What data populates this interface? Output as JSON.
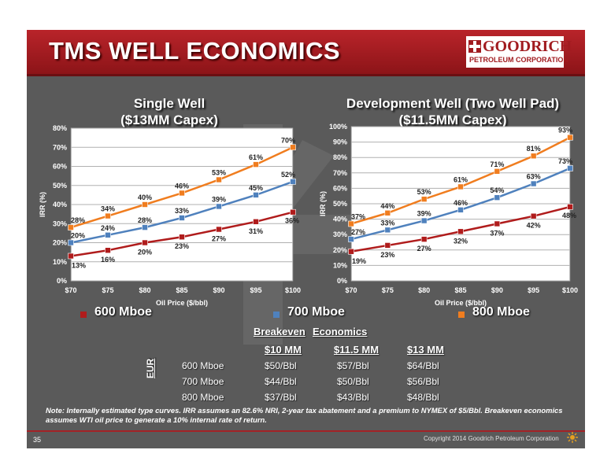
{
  "slide_title": "TMS WELL ECONOMICS",
  "logo": {
    "name": "GOODRICH",
    "subtitle": "PETROLEUM CORPORATION"
  },
  "colors": {
    "header_red": "#b9242a",
    "s600": "#b01c1c",
    "s700": "#4f81bd",
    "s800": "#f07d1f"
  },
  "chart_data": [
    {
      "type": "line",
      "title": "Single Well ($13MM Capex)",
      "title_line1": "Single Well",
      "title_line2": "($13MM Capex)",
      "xlabel": "Oil Price ($/bbl)",
      "ylabel": "IRR (%)",
      "categories": [
        "$70",
        "$75",
        "$80",
        "$85",
        "$90",
        "$95",
        "$100"
      ],
      "ylim": [
        0,
        80
      ],
      "yticks": [
        0,
        10,
        20,
        30,
        40,
        50,
        60,
        70,
        80
      ],
      "ytick_labels": [
        "0%",
        "10%",
        "20%",
        "30%",
        "40%",
        "50%",
        "60%",
        "70%",
        "80%"
      ],
      "grid": true,
      "series": [
        {
          "name": "600 Mboe",
          "color": "#b01c1c",
          "values": [
            13,
            16,
            20,
            23,
            27,
            31,
            36
          ],
          "labels": [
            "13%",
            "16%",
            "20%",
            "23%",
            "27%",
            "31%",
            "36%"
          ]
        },
        {
          "name": "700 Mboe",
          "color": "#4f81bd",
          "values": [
            20,
            24,
            28,
            33,
            39,
            45,
            52
          ],
          "labels": [
            "20%",
            "24%",
            "28%",
            "33%",
            "39%",
            "45%",
            "52%"
          ]
        },
        {
          "name": "800 Mboe",
          "color": "#f07d1f",
          "values": [
            28,
            34,
            40,
            46,
            53,
            61,
            70
          ],
          "labels": [
            "28%",
            "34%",
            "40%",
            "46%",
            "53%",
            "61%",
            "70%"
          ]
        }
      ]
    },
    {
      "type": "line",
      "title": "Development Well (Two Well Pad) ($11.5MM Capex)",
      "title_line1": "Development Well (Two Well Pad)",
      "title_line2": "($11.5MM Capex)",
      "xlabel": "Oil Price ($/bbl)",
      "ylabel": "IRR (%)",
      "categories": [
        "$70",
        "$75",
        "$80",
        "$85",
        "$90",
        "$95",
        "$100"
      ],
      "ylim": [
        0,
        100
      ],
      "yticks": [
        0,
        10,
        20,
        30,
        40,
        50,
        60,
        70,
        80,
        90,
        100
      ],
      "ytick_labels": [
        "0%",
        "10%",
        "20%",
        "30%",
        "40%",
        "50%",
        "60%",
        "70%",
        "80%",
        "90%",
        "100%"
      ],
      "grid": true,
      "series": [
        {
          "name": "600 Mboe",
          "color": "#b01c1c",
          "values": [
            19,
            23,
            27,
            32,
            37,
            42,
            48
          ],
          "labels": [
            "19%",
            "23%",
            "27%",
            "32%",
            "37%",
            "42%",
            "48%"
          ]
        },
        {
          "name": "700 Mboe",
          "color": "#4f81bd",
          "values": [
            27,
            33,
            39,
            46,
            54,
            63,
            73
          ],
          "labels": [
            "27%",
            "33%",
            "39%",
            "46%",
            "54%",
            "63%",
            "73%"
          ]
        },
        {
          "name": "800 Mboe",
          "color": "#f07d1f",
          "values": [
            37,
            44,
            53,
            61,
            71,
            81,
            93
          ],
          "labels": [
            "37%",
            "44%",
            "53%",
            "61%",
            "71%",
            "81%",
            "93%"
          ]
        }
      ]
    }
  ],
  "legend": [
    {
      "label": "600 Mboe",
      "color": "#b01c1c"
    },
    {
      "label": "700 Mboe",
      "color": "#4f81bd"
    },
    {
      "label": "800 Mboe",
      "color": "#f07d1f"
    }
  ],
  "breakeven": {
    "heading_1": "Breakeven",
    "heading_2": "Economics",
    "row_axis_label": "EUR",
    "columns": [
      "$10 MM",
      "$11.5 MM",
      "$13 MM"
    ],
    "rows": [
      {
        "label": "600 Mboe",
        "values": [
          "$50/Bbl",
          "$57/Bbl",
          "$64/Bbl"
        ]
      },
      {
        "label": "700 Mboe",
        "values": [
          "$44/Bbl",
          "$50/Bbl",
          "$56/Bbl"
        ]
      },
      {
        "label": "800 Mboe",
        "values": [
          "$37/Bbl",
          "$43/Bbl",
          "$48/Bbl"
        ]
      }
    ]
  },
  "note": "Note:  Internally estimated type curves.  IRR assumes an 82.6% NRI, 2-year tax abatement and a premium to NYMEX of $5/Bbl.  Breakeven economics assumes WTI oil price to generate  a 10% internal rate of return.",
  "page_number": "35",
  "copyright": "Copyright 2014 Goodrich Petroleum Corporation"
}
